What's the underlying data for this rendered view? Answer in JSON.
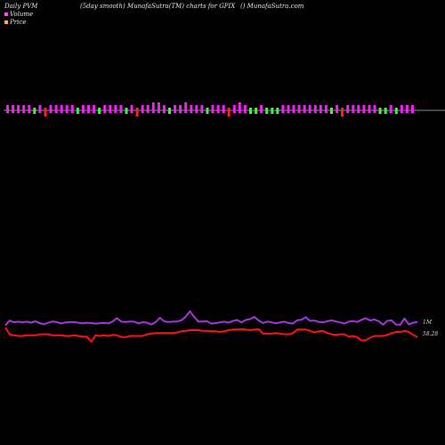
{
  "header": {
    "left": "Daily PVM",
    "center": "(5day smooth) MunafaSutra(TM) charts for GPIX",
    "right": "() MunafaSutra.com"
  },
  "legend": [
    {
      "label": "Volume",
      "color": "#ff44ff"
    },
    {
      "label": "Price",
      "color": "#ffaa55"
    }
  ],
  "colors": {
    "background": "#000000",
    "baseline": "#bbbbbb",
    "up_bar": "#ee22ee",
    "down_bar": "#44ee44",
    "big_down_bar": "#ff2222",
    "volume_line": "#aa33dd",
    "price_line": "#ff1111"
  },
  "chart_data": {
    "type": "line",
    "bars": {
      "directions": [
        "up",
        "up",
        "up",
        "up",
        "up",
        "down",
        "up",
        "big_down",
        "up",
        "up",
        "up",
        "up",
        "up",
        "down",
        "up",
        "up",
        "up",
        "down",
        "up",
        "up",
        "up",
        "up",
        "down",
        "up",
        "big_down",
        "up",
        "up",
        "up",
        "up",
        "up",
        "down",
        "up",
        "up",
        "up",
        "up",
        "up",
        "up",
        "down",
        "up",
        "up",
        "up",
        "big_down",
        "up",
        "up",
        "up",
        "down",
        "down",
        "up",
        "down",
        "down",
        "down",
        "up",
        "up",
        "up",
        "up",
        "up",
        "up",
        "up",
        "up",
        "up",
        "down",
        "up",
        "big_down",
        "up",
        "up",
        "up",
        "up",
        "up",
        "up",
        "down",
        "down",
        "up",
        "down",
        "up",
        "up",
        "up"
      ],
      "heights": [
        1,
        1,
        1,
        1,
        1,
        1,
        1,
        2,
        1,
        1,
        1,
        1,
        1,
        1,
        1,
        1,
        1,
        1,
        1,
        1,
        1,
        1,
        1,
        1,
        1,
        1,
        1,
        2,
        2,
        1,
        1,
        1,
        1,
        2,
        1,
        1,
        1,
        1,
        1,
        1,
        1,
        2,
        1,
        2,
        1,
        1,
        1,
        1,
        1,
        1,
        1,
        1,
        1,
        1,
        1,
        1,
        1,
        1,
        1,
        1,
        1,
        1,
        1,
        1,
        1,
        1,
        1,
        1,
        1,
        1,
        1,
        1,
        1,
        1,
        1,
        1
      ]
    },
    "series": [
      {
        "name": "Volume",
        "values": [
          2.6,
          4.9,
          4.1,
          4.4,
          4.1,
          4.4,
          3.9,
          4.6,
          3.7,
          3.2,
          3.9,
          4.5,
          4.2,
          3.6,
          4.0,
          4.3,
          4.2,
          3.9,
          3.6,
          3.9,
          3.8,
          3.5,
          3.7,
          3.8,
          3.6,
          4.5,
          6.1,
          4.4,
          4.3,
          4.5,
          4.4,
          3.6,
          4.2,
          3.9,
          3.1,
          4.2,
          6.2,
          4.6,
          4.3,
          4.4,
          4.5,
          5.0,
          6.7,
          9.3,
          6.6,
          4.4,
          4.5,
          4.6,
          3.5,
          3.7,
          4.1,
          4.4,
          3.9,
          4.7,
          5.2,
          4.1,
          5.2,
          5.6,
          6.6,
          5.0,
          3.8,
          4.4,
          4.2,
          3.6,
          4.1,
          4.4,
          3.8,
          3.5,
          5.1,
          5.3,
          6.5,
          4.8,
          4.9,
          4.3,
          4.1,
          4.6,
          5.0,
          4.5,
          4.1,
          3.5,
          4.4,
          4.7,
          4.3,
          5.3,
          6.0,
          5.0,
          5.4,
          4.6,
          3.0,
          4.8,
          5.0,
          3.0,
          3.0,
          5.9,
          3.1,
          3.9,
          4.2
        ]
      },
      {
        "name": "Price",
        "values": [
          58.05,
          56.9,
          56.7,
          56.6,
          56.6,
          56.7,
          56.7,
          56.7,
          56.9,
          56.9,
          56.9,
          56.7,
          56.7,
          56.7,
          56.6,
          56.6,
          56.7,
          56.6,
          56.5,
          56.5,
          55.6,
          56.7,
          56.6,
          56.7,
          56.6,
          56.8,
          56.7,
          56.4,
          56.4,
          56.6,
          56.6,
          56.6,
          56.6,
          56.9,
          57.0,
          57.1,
          57.1,
          57.1,
          57.1,
          57.1,
          57.2,
          57.4,
          57.5,
          57.6,
          57.6,
          57.6,
          57.5,
          57.5,
          57.4,
          57.4,
          57.3,
          57.4,
          57.6,
          57.7,
          57.7,
          57.8,
          57.7,
          57.6,
          57.7,
          57.8,
          57.0,
          57.0,
          57.0,
          57.1,
          57.0,
          56.9,
          56.9,
          57.1,
          57.7,
          57.7,
          57.7,
          57.5,
          57.2,
          57.4,
          57.5,
          57.1,
          56.9,
          56.8,
          56.9,
          56.9,
          56.5,
          56.6,
          56.4,
          55.8,
          55.9,
          56.3,
          56.6,
          56.6,
          56.6,
          56.8,
          57.1,
          57.3,
          57.3,
          57.5,
          57.3,
          56.8,
          56.4
        ]
      }
    ],
    "end_labels": {
      "volume": "1M",
      "price": "58.28"
    }
  }
}
